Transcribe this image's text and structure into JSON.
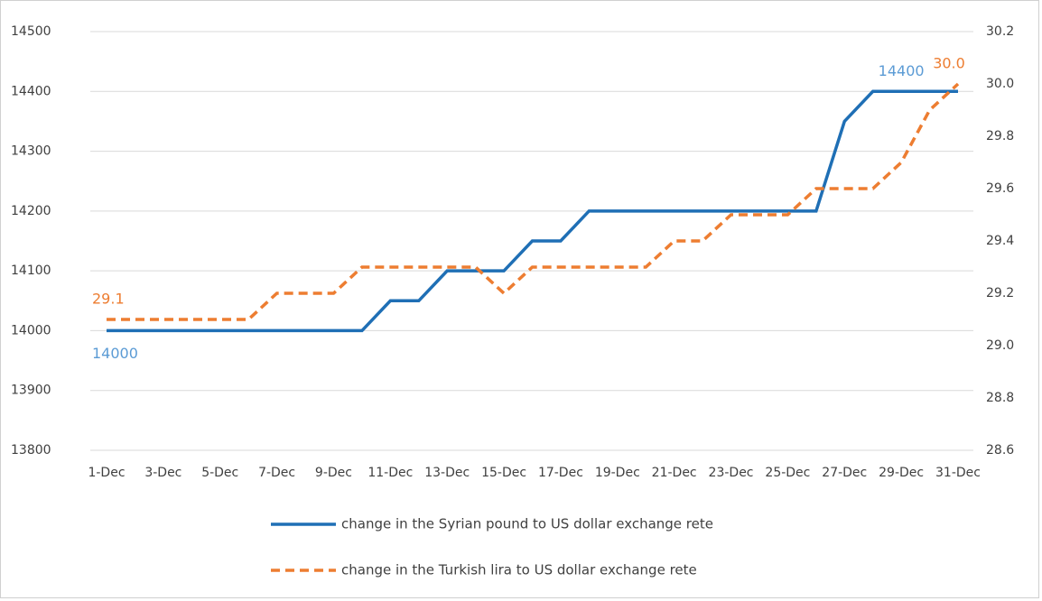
{
  "chart_data": {
    "type": "line",
    "categories": [
      "1-Dec",
      null,
      "3-Dec",
      null,
      "5-Dec",
      null,
      "7-Dec",
      null,
      "9-Dec",
      null,
      "11-Dec",
      null,
      "13-Dec",
      null,
      "15-Dec",
      null,
      "17-Dec",
      null,
      "19-Dec",
      null,
      "21-Dec",
      null,
      "23-Dec",
      null,
      "25-Dec",
      null,
      "27-Dec",
      null,
      "29-Dec",
      null,
      "31-Dec"
    ],
    "series": [
      {
        "name": "change in the Syrian pound to US dollar exchange rete",
        "color": "#1f6fb5",
        "dash": false,
        "label_color": "#5b9bd5",
        "values": [
          14000,
          14000,
          14000,
          14000,
          14000,
          14000,
          14000,
          14000,
          14000,
          14000,
          14050,
          14050,
          14100,
          14100,
          14100,
          14150,
          14150,
          14200,
          14200,
          14200,
          14200,
          14200,
          14200,
          14200,
          14200,
          14200,
          14350,
          14400,
          14400,
          14400,
          14400
        ],
        "value_labels": [
          "14000",
          null,
          null,
          null,
          null,
          null,
          null,
          null,
          null,
          null,
          null,
          null,
          null,
          null,
          null,
          null,
          null,
          null,
          null,
          null,
          null,
          null,
          null,
          null,
          null,
          null,
          null,
          null,
          "14400",
          null,
          null
        ]
      },
      {
        "name": "change in the Turkish lira to US dollar exchange rete",
        "color": "#ed7d31",
        "dash": true,
        "axis": "y2",
        "label_color": "#ed7d31",
        "values": [
          29.1,
          29.1,
          29.1,
          29.1,
          29.1,
          29.1,
          29.2,
          29.2,
          29.2,
          29.3,
          29.3,
          29.3,
          29.3,
          29.3,
          29.2,
          29.3,
          29.3,
          29.3,
          29.3,
          29.3,
          29.4,
          29.4,
          29.5,
          29.5,
          29.5,
          29.6,
          29.6,
          29.6,
          29.7,
          29.9,
          30.0
        ],
        "value_labels": [
          "29.1",
          null,
          null,
          null,
          null,
          null,
          null,
          null,
          null,
          null,
          null,
          null,
          null,
          null,
          null,
          null,
          null,
          null,
          null,
          null,
          null,
          null,
          null,
          null,
          null,
          null,
          null,
          null,
          null,
          null,
          "30.0"
        ]
      }
    ],
    "ylim": [
      13800,
      14500
    ],
    "yticks": [
      13800,
      13900,
      14000,
      14100,
      14200,
      14300,
      14400,
      14500
    ],
    "y2lim": [
      28.6,
      30.2
    ],
    "y2ticks": [
      28.6,
      28.8,
      {
        "value": 29,
        "label": "29.0"
      },
      29.2,
      29.4,
      29.6,
      29.8,
      {
        "value": 30,
        "label": "30.0"
      },
      30.2
    ],
    "grid": true,
    "legend": "bottom"
  }
}
